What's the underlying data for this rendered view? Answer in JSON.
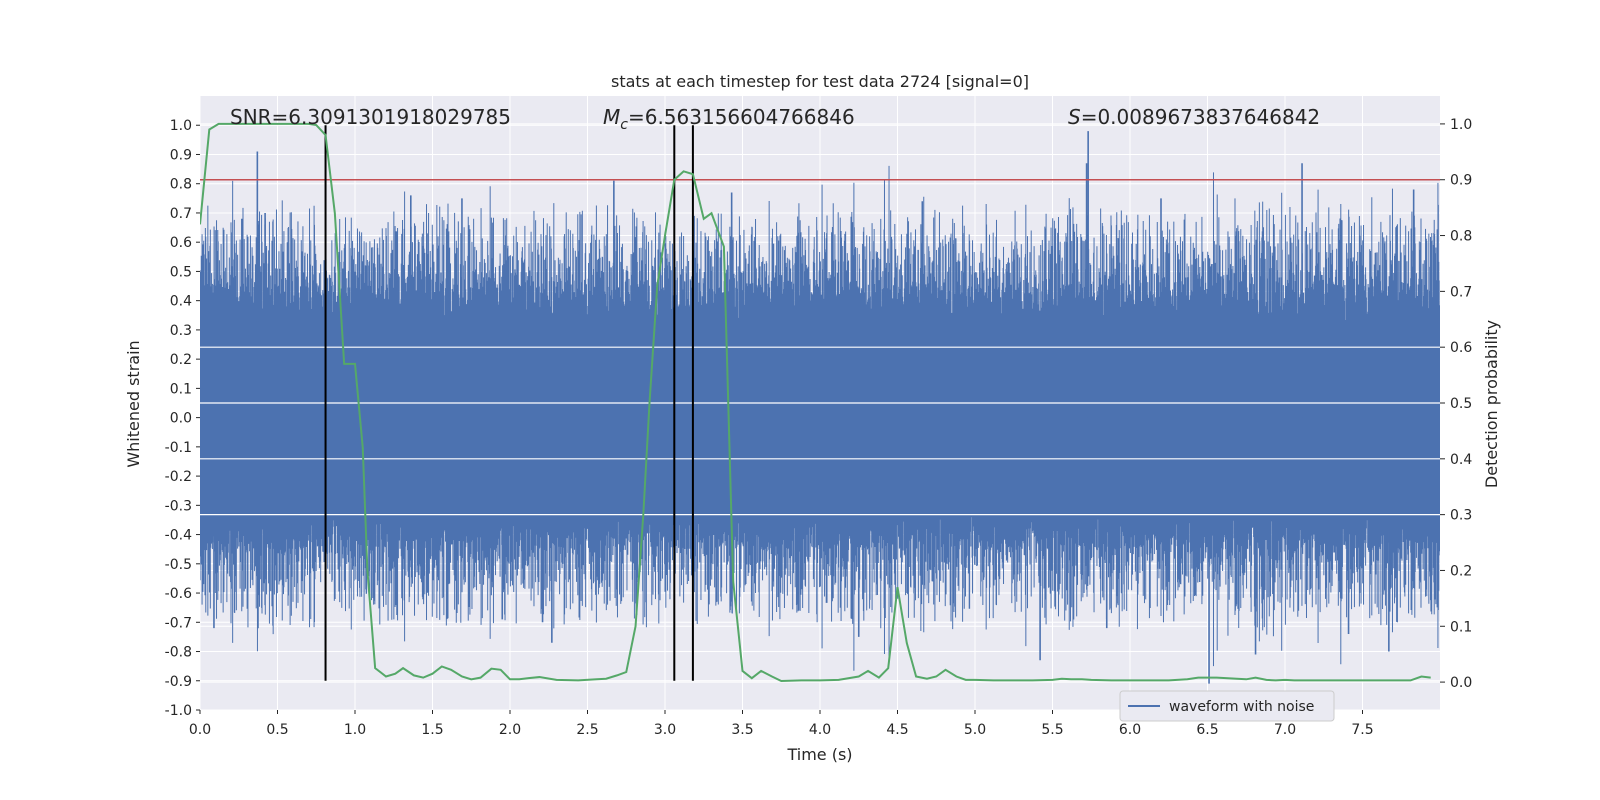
{
  "chart_data": {
    "type": "line",
    "title": "stats at each timestep for test data 2724 [signal=0]",
    "xlabel": "Time (s)",
    "ylabel": "Whitened strain",
    "y2label": "Detection probability",
    "xlim": [
      0.0,
      8.0
    ],
    "ylim": [
      -1.0,
      1.1
    ],
    "y2lim": [
      -0.05,
      1.05
    ],
    "x_ticks": [
      "0.0",
      "0.5",
      "1.0",
      "1.5",
      "2.0",
      "2.5",
      "3.0",
      "3.5",
      "4.0",
      "4.5",
      "5.0",
      "5.5",
      "6.0",
      "6.5",
      "7.0",
      "7.5"
    ],
    "y_ticks": [
      "1.0",
      "0.9",
      "0.8",
      "0.7",
      "0.6",
      "0.5",
      "0.4",
      "0.3",
      "0.2",
      "0.1",
      "0.0",
      "-0.1",
      "-0.2",
      "-0.3",
      "-0.4",
      "-0.5",
      "-0.6",
      "-0.7",
      "-0.8",
      "-0.9",
      "-1.0"
    ],
    "y2_ticks": [
      "1.0",
      "0.9",
      "0.8",
      "0.7",
      "0.6",
      "0.5",
      "0.4",
      "0.3",
      "0.2",
      "0.1",
      "0.0"
    ],
    "grid": true,
    "legend_position": "lower-right",
    "annotations": {
      "snr": "SNR=6.3091301918029785",
      "mc": "=6.563156604766846",
      "mc_symbol": "M",
      "mc_sub": "c",
      "s": "=0.0089673837646842",
      "s_symbol": "S"
    },
    "threshold": {
      "value": 0.9,
      "axis": "y2",
      "color": "#c44e52"
    },
    "vlines": [
      0.81,
      3.06,
      3.18
    ],
    "colors": {
      "waveform": "#4c72b0",
      "probability": "#55a868",
      "vline": "#000000",
      "background": "#eaeaf2",
      "grid": "#ffffff"
    },
    "series": [
      {
        "name": "waveform with noise",
        "kind": "noise",
        "axis": "y",
        "band": [
          -0.33,
          0.33
        ],
        "spikes": [
          [
            0.37,
            0.91
          ],
          [
            5.73,
            0.98
          ],
          [
            5.72,
            0.87
          ],
          [
            7.11,
            0.87
          ],
          [
            0.42,
            0.7
          ],
          [
            0.27,
            0.68
          ],
          [
            1.36,
            0.76
          ],
          [
            2.67,
            0.81
          ],
          [
            1.69,
            0.75
          ],
          [
            3.43,
            0.77
          ],
          [
            4.66,
            0.74
          ],
          [
            6.2,
            0.75
          ],
          [
            7.83,
            0.78
          ],
          [
            6.51,
            -0.91
          ],
          [
            5.42,
            -0.83
          ],
          [
            7.67,
            -0.8
          ],
          [
            2.27,
            -0.77
          ],
          [
            6.81,
            -0.81
          ],
          [
            0.81,
            -0.78
          ],
          [
            0.09,
            -0.72
          ],
          [
            1.95,
            -0.69
          ],
          [
            2.21,
            -0.7
          ],
          [
            4.25,
            -0.75
          ],
          [
            7.41,
            -0.74
          ],
          [
            5.85,
            -0.72
          ]
        ]
      },
      {
        "name": "",
        "kind": "line",
        "axis": "y2",
        "x": [
          0.0,
          0.06,
          0.12,
          0.2,
          0.3,
          0.5,
          0.7,
          0.75,
          0.81,
          0.87,
          0.93,
          1.0,
          1.05,
          1.08,
          1.13,
          1.2,
          1.26,
          1.31,
          1.38,
          1.44,
          1.5,
          1.56,
          1.62,
          1.69,
          1.75,
          1.81,
          1.88,
          1.94,
          2.0,
          2.06,
          2.12,
          2.19,
          2.3,
          2.44,
          2.56,
          2.62,
          2.69,
          2.75,
          2.81,
          2.86,
          2.9,
          2.95,
          3.0,
          3.06,
          3.12,
          3.18,
          3.25,
          3.3,
          3.38,
          3.44,
          3.5,
          3.56,
          3.62,
          3.69,
          3.75,
          3.88,
          4.0,
          4.12,
          4.25,
          4.31,
          4.38,
          4.44,
          4.5,
          4.56,
          4.62,
          4.69,
          4.75,
          4.81,
          4.88,
          4.94,
          5.0,
          5.12,
          5.25,
          5.37,
          5.5,
          5.56,
          5.62,
          5.69,
          5.75,
          5.88,
          6.0,
          6.25,
          6.37,
          6.44,
          6.56,
          6.69,
          6.75,
          6.81,
          6.88,
          6.94,
          7.0,
          7.06,
          7.12,
          7.19,
          7.31,
          7.44,
          7.56,
          7.69,
          7.75,
          7.81,
          7.88,
          7.94
        ],
        "y": [
          0.82,
          0.99,
          1.0,
          1.0,
          1.0,
          1.0,
          1.0,
          0.998,
          0.98,
          0.84,
          0.57,
          0.57,
          0.42,
          0.2,
          0.025,
          0.01,
          0.015,
          0.025,
          0.012,
          0.008,
          0.015,
          0.028,
          0.022,
          0.01,
          0.005,
          0.008,
          0.024,
          0.022,
          0.005,
          0.005,
          0.007,
          0.009,
          0.004,
          0.003,
          0.005,
          0.006,
          0.012,
          0.018,
          0.1,
          0.3,
          0.5,
          0.71,
          0.8,
          0.9,
          0.915,
          0.91,
          0.83,
          0.84,
          0.78,
          0.18,
          0.02,
          0.007,
          0.02,
          0.01,
          0.002,
          0.003,
          0.003,
          0.004,
          0.01,
          0.02,
          0.008,
          0.025,
          0.17,
          0.07,
          0.01,
          0.006,
          0.01,
          0.022,
          0.01,
          0.004,
          0.004,
          0.003,
          0.003,
          0.003,
          0.004,
          0.006,
          0.005,
          0.005,
          0.004,
          0.003,
          0.003,
          0.003,
          0.005,
          0.008,
          0.008,
          0.006,
          0.005,
          0.008,
          0.004,
          0.003,
          0.004,
          0.003,
          0.003,
          0.003,
          0.003,
          0.003,
          0.003,
          0.003,
          0.003,
          0.003,
          0.01,
          0.008
        ]
      }
    ]
  }
}
